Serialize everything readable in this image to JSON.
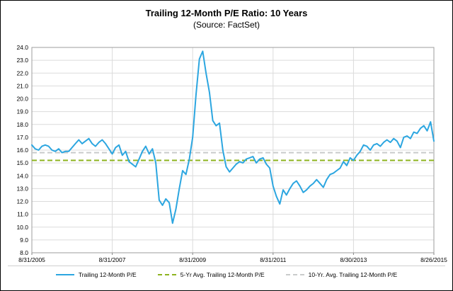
{
  "chart_data": {
    "type": "line",
    "title": "Trailing 12-Month P/E Ratio: 10 Years",
    "subtitle": "(Source: FactSet)",
    "ylim": [
      8.0,
      24.0
    ],
    "ytick_step": 1.0,
    "grid": true,
    "legend_position": "bottom",
    "x_range": [
      "8/31/2005",
      "8/26/2015"
    ],
    "x_tick_labels": [
      "8/31/2005",
      "8/31/2007",
      "8/31/2009",
      "8/31/2011",
      "8/30/2013",
      "8/26/2015"
    ],
    "series": [
      {
        "id": "trailing-pe",
        "name": "Trailing 12-Month P/E",
        "color": "#2CA6E0",
        "dash": false,
        "values": [
          16.4,
          16.1,
          16.0,
          16.3,
          16.4,
          16.3,
          16.0,
          15.9,
          16.1,
          15.8,
          15.9,
          15.9,
          16.2,
          16.5,
          16.8,
          16.5,
          16.7,
          16.9,
          16.5,
          16.3,
          16.6,
          16.8,
          16.5,
          16.1,
          15.7,
          16.2,
          16.4,
          15.6,
          15.9,
          15.1,
          14.9,
          14.7,
          15.3,
          15.9,
          16.3,
          15.7,
          16.1,
          15.0,
          12.1,
          11.7,
          12.2,
          11.9,
          10.3,
          11.4,
          13.0,
          14.4,
          14.1,
          15.3,
          17.0,
          20.3,
          23.1,
          23.7,
          22.0,
          20.5,
          18.3,
          17.9,
          18.1,
          16.0,
          14.7,
          14.3,
          14.6,
          14.9,
          15.1,
          15.0,
          15.3,
          15.4,
          15.5,
          15.0,
          15.3,
          15.4,
          14.9,
          14.6,
          13.2,
          12.4,
          11.8,
          12.9,
          12.5,
          13.0,
          13.4,
          13.6,
          13.2,
          12.7,
          12.9,
          13.2,
          13.4,
          13.7,
          13.4,
          13.1,
          13.7,
          14.1,
          14.2,
          14.4,
          14.6,
          15.1,
          14.8,
          15.4,
          15.2,
          15.6,
          15.9,
          16.4,
          16.3,
          16.0,
          16.4,
          16.5,
          16.3,
          16.6,
          16.8,
          16.6,
          16.9,
          16.7,
          16.2,
          17.0,
          17.1,
          16.9,
          17.4,
          17.3,
          17.7,
          17.9,
          17.5,
          18.2,
          16.7
        ]
      },
      {
        "id": "five-yr-avg",
        "name": "5-Yr Avg. Trailing 12-Month P/E",
        "color": "#8DB31E",
        "dash": true,
        "constant": 15.2
      },
      {
        "id": "ten-yr-avg",
        "name": "10-Yr. Avg. Trailing 12-Month P/E",
        "color": "#C9CBCB",
        "dash": true,
        "constant": 15.8
      }
    ]
  }
}
